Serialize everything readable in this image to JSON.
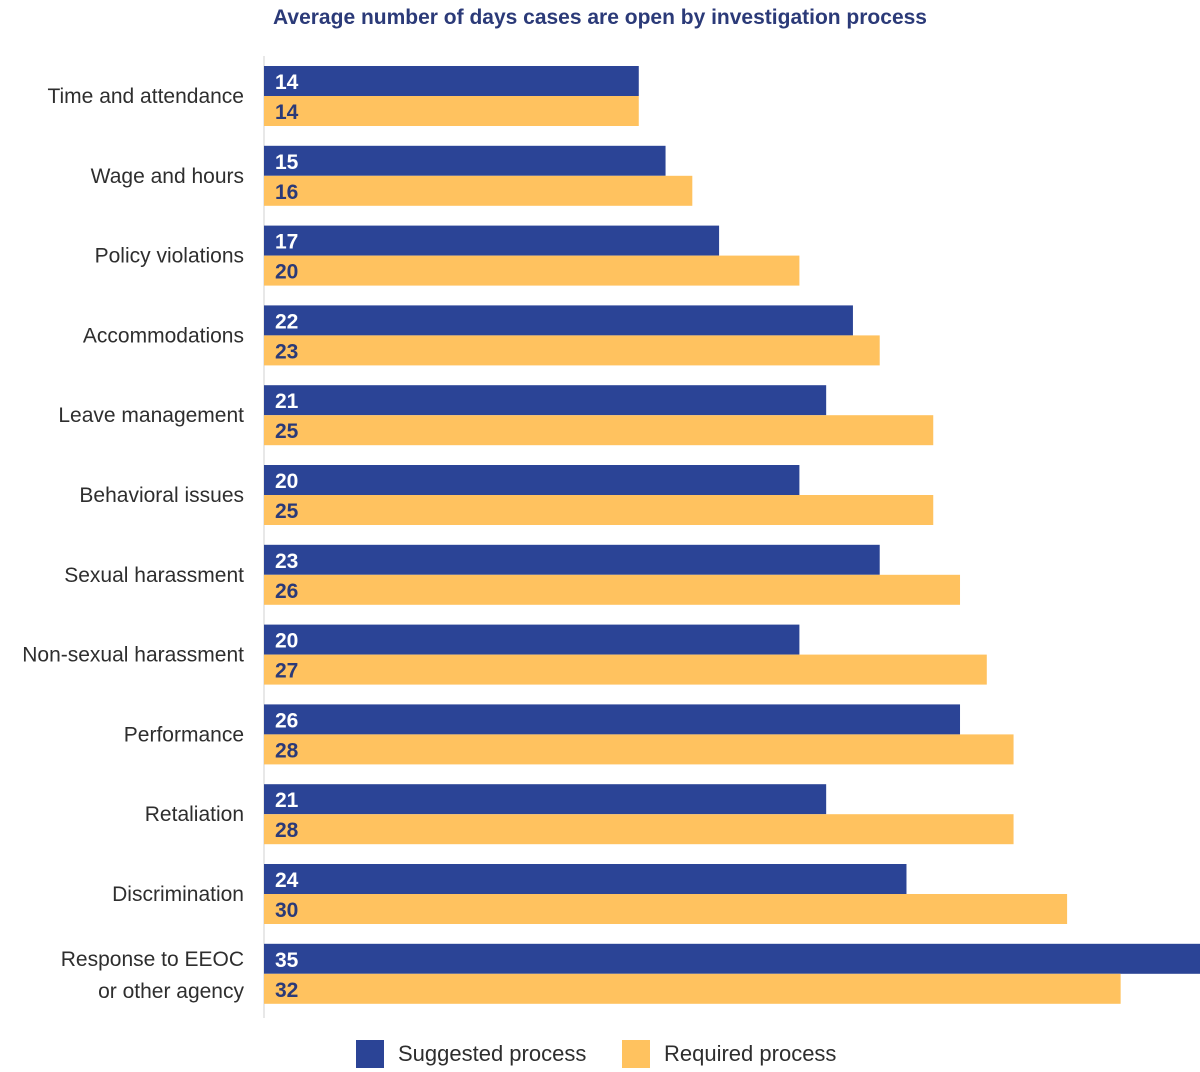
{
  "chart_data": {
    "type": "bar",
    "orientation": "horizontal",
    "title": "Average number of days cases are open by investigation process",
    "xlabel": "",
    "ylabel": "",
    "xlim": [
      0,
      35
    ],
    "grid": false,
    "legend_position": "bottom",
    "categories": [
      "Time and attendance",
      "Wage and hours",
      "Policy violations",
      "Accommodations",
      "Leave management",
      "Behavioral issues",
      "Sexual harassment",
      "Non-sexual harassment",
      "Performance",
      "Retaliation",
      "Discrimination",
      "Response to EEOC or other agency"
    ],
    "series": [
      {
        "name": "Suggested process",
        "color": "#2b4496",
        "label_color": "#ffffff",
        "values": [
          14,
          15,
          17,
          22,
          21,
          20,
          23,
          20,
          26,
          21,
          24,
          35
        ]
      },
      {
        "name": "Required process",
        "color": "#ffc25f",
        "label_color": "#2b3a78",
        "values": [
          14,
          16,
          20,
          23,
          25,
          25,
          26,
          27,
          28,
          28,
          30,
          32
        ]
      }
    ]
  }
}
